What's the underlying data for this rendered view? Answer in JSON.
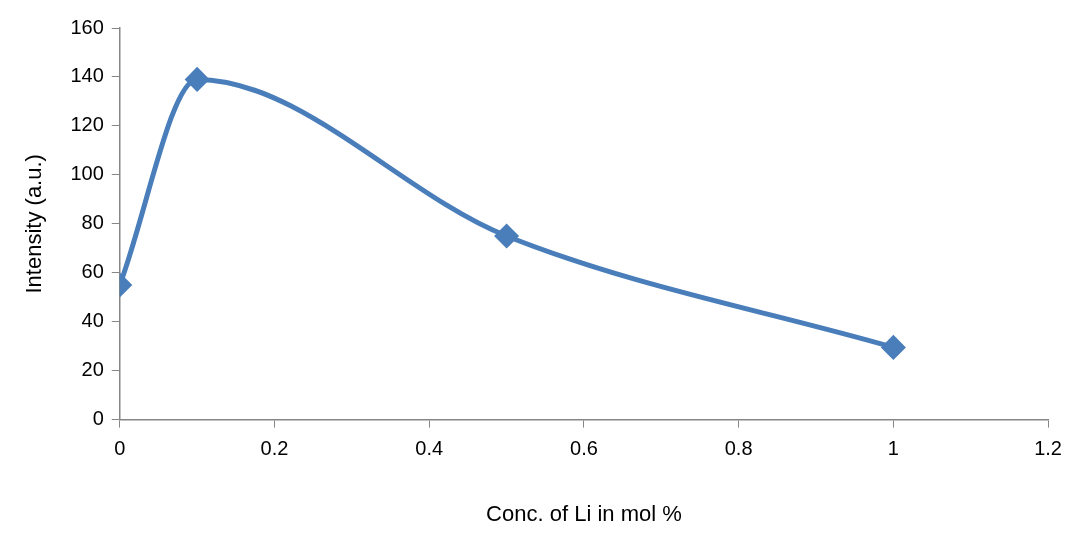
{
  "chart_data": {
    "type": "line",
    "xlabel": "Conc. of Li in mol %",
    "ylabel": "Intensity (a.u.)",
    "x": [
      0,
      0.1,
      0.5,
      1
    ],
    "series": [
      {
        "color": "#4a7ebb",
        "values": [
          55,
          139,
          75,
          29.5
        ]
      }
    ],
    "xlim": [
      0,
      1.2
    ],
    "xticks": [
      0,
      0.2,
      0.4,
      0.6,
      0.8,
      1,
      1.2
    ],
    "ylim": [
      0,
      160
    ],
    "yticks": [
      0,
      20,
      40,
      60,
      80,
      100,
      120,
      140,
      160
    ],
    "grid": false,
    "legend": false,
    "marker": "diamond",
    "line_style": "solid"
  }
}
